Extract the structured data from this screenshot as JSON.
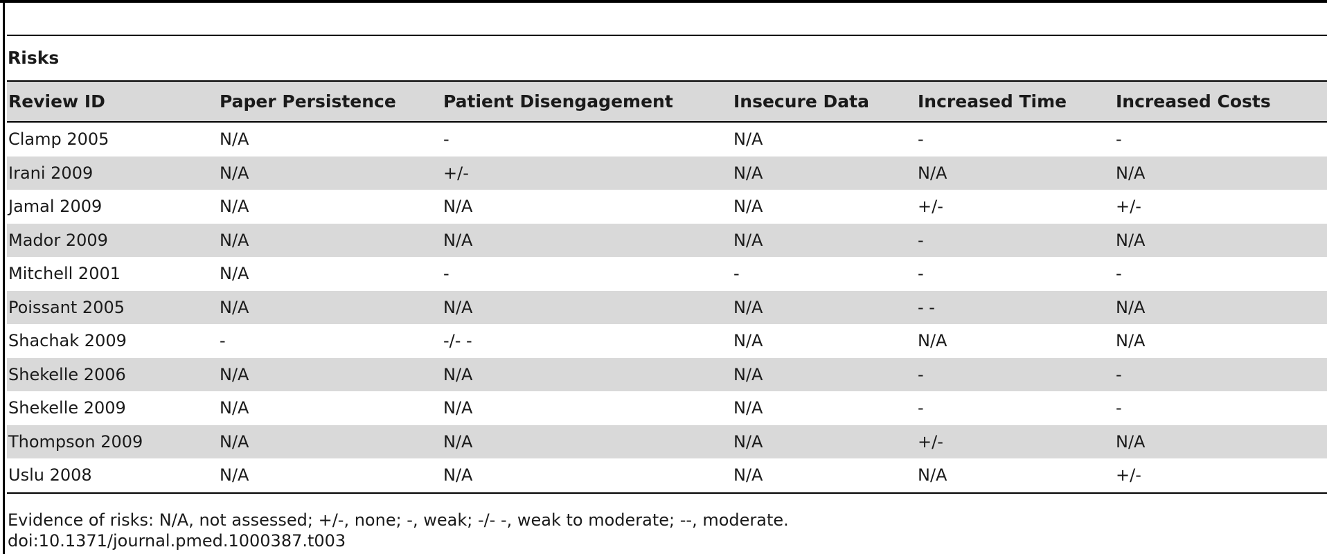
{
  "section_title": "Risks",
  "columns": [
    "Review ID",
    "Paper Persistence",
    "Patient Disengagement",
    "Insecure Data",
    "Increased Time",
    "Increased Costs"
  ],
  "rows": [
    [
      "Clamp 2005",
      "N/A",
      "-",
      "N/A",
      "-",
      "-"
    ],
    [
      "Irani 2009",
      "N/A",
      "+/-",
      "N/A",
      "N/A",
      "N/A"
    ],
    [
      "Jamal 2009",
      "N/A",
      "N/A",
      "N/A",
      "+/-",
      "+/-"
    ],
    [
      "Mador 2009",
      "N/A",
      "N/A",
      "N/A",
      "-",
      "N/A"
    ],
    [
      "Mitchell 2001",
      "N/A",
      "-",
      "-",
      "-",
      "-"
    ],
    [
      "Poissant 2005",
      "N/A",
      "N/A",
      "N/A",
      "- -",
      "N/A"
    ],
    [
      "Shachak 2009",
      "-",
      "-/- -",
      "N/A",
      "N/A",
      "N/A"
    ],
    [
      "Shekelle 2006",
      "N/A",
      "N/A",
      "N/A",
      "-",
      "-"
    ],
    [
      "Shekelle 2009",
      "N/A",
      "N/A",
      "N/A",
      "-",
      "-"
    ],
    [
      "Thompson 2009",
      "N/A",
      "N/A",
      "N/A",
      "+/-",
      "N/A"
    ],
    [
      "Uslu 2008",
      "N/A",
      "N/A",
      "N/A",
      "N/A",
      "+/-"
    ]
  ],
  "footnote": "Evidence of risks: N/A, not assessed; +/-, none; -, weak; -/- -, weak to moderate; --, moderate.",
  "doi": "doi:10.1371/journal.pmed.1000387.t003"
}
